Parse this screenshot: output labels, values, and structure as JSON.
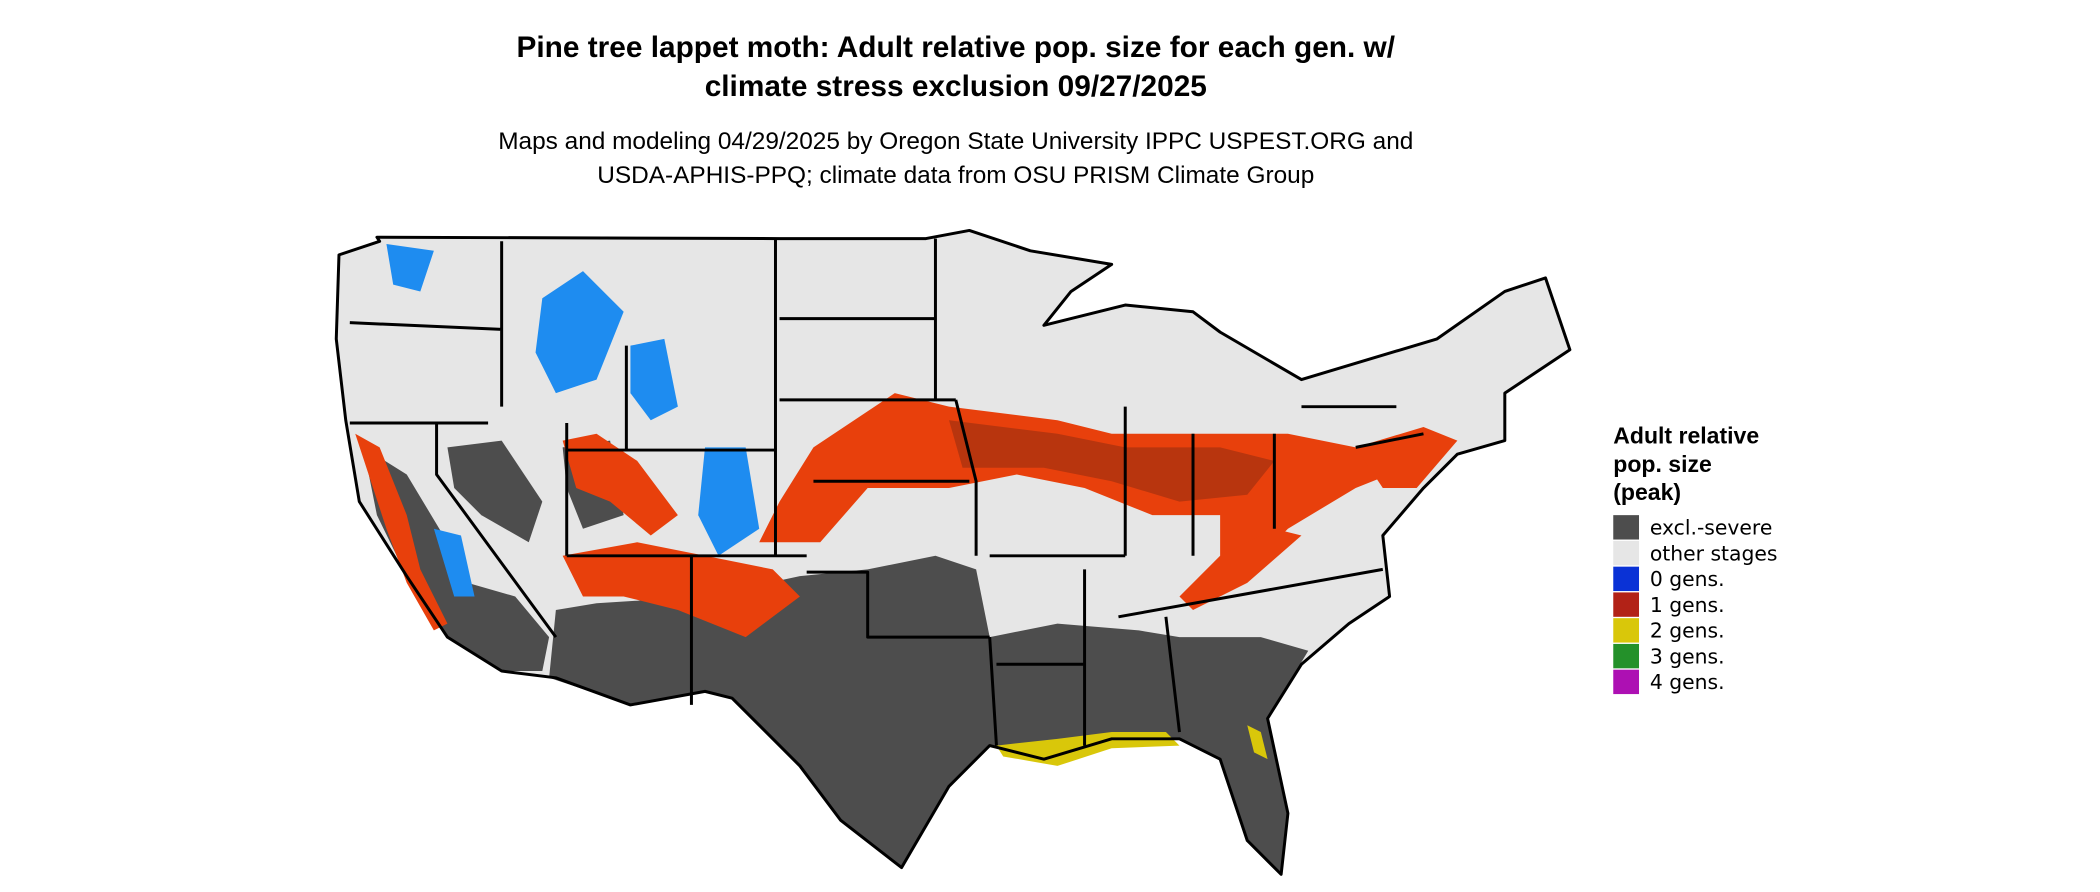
{
  "header": {
    "title": [
      "Pine tree lappet moth: Adult relative pop. size for each gen. w/",
      "climate stress exclusion 09/27/2025"
    ],
    "subtitle": [
      "Maps and modeling 04/29/2025 by Oregon State University IPPC USPEST.ORG and",
      "USDA-APHIS-PPQ; climate data from OSU PRISM Climate Group"
    ]
  },
  "legend": {
    "title": [
      "Adult relative",
      "pop. size",
      "(peak)"
    ],
    "items": [
      {
        "label": "excl.-severe",
        "color": "#4d4d4d"
      },
      {
        "label": "other stages",
        "color": "#e6e6e6"
      },
      {
        "label": "0 gens.",
        "color": "#0a32d6"
      },
      {
        "label": "1 gens.",
        "color": "#b22217"
      },
      {
        "label": "2 gens.",
        "color": "#d9c70a"
      },
      {
        "label": "3 gens.",
        "color": "#24912a"
      },
      {
        "label": "4 gens.",
        "color": "#ad10b3"
      }
    ]
  }
}
